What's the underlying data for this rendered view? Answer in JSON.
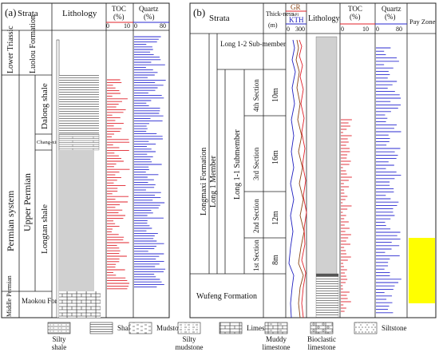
{
  "figure_a": {
    "panel_label": "(a)",
    "headers": {
      "strata": "Strata",
      "lithology": "Lithology",
      "toc": "TOC",
      "toc_unit": "(%)",
      "toc_min": "0",
      "toc_max": "10",
      "quartz": "Quartz",
      "quartz_unit": "(%)",
      "quartz_min": "0",
      "quartz_max": "80"
    },
    "strata": {
      "lower_triassic": "Lower Triassic",
      "luolou_formation": "Luolou Formation",
      "permian_system": "Permian system",
      "upper_permian": "Upper Permian",
      "dalong_shale": "Dalong shale",
      "changxing": "Chang-xing",
      "longtan_shale": "Longtan shale",
      "middle_permian": "Middle Permian",
      "maokou_formation": "Maokou Formation"
    }
  },
  "figure_b": {
    "panel_label": "(b)",
    "headers": {
      "strata": "Strata",
      "thickness": "Thick-ness",
      "thickness_unit": "(m)",
      "gr": "GR",
      "gr_unit": "API",
      "kth": "KTH",
      "gamma_min": "0",
      "gamma_max": "300",
      "lithology": "Lithology",
      "toc": "TOC",
      "toc_unit": "(%)",
      "toc_min": "0",
      "toc_max": "10",
      "quartz": "Quartz",
      "quartz_unit": "(%)",
      "quartz_min": "0",
      "quartz_max": "80",
      "pay_zone": "Pay Zone"
    },
    "strata": {
      "longmaxi_formation": "Longmaxi Formation",
      "long1_member": "Long 1 Member",
      "long1_2_submember": "Long 1-2 Sub-member",
      "long1_1_submember": "Long 1-1 Submember",
      "section_4th": "4th Section",
      "section_3rd": "3rd Section",
      "section_2nd": "2nd Section",
      "section_1st": "1st Section",
      "wufeng_formation": "Wufeng Formation",
      "thickness_10m": "10m",
      "thickness_16m": "16m",
      "thickness_12m": "12m",
      "thickness_8m": "8m"
    },
    "pay_zone_color": "#ffff00"
  },
  "legend": [
    {
      "label": "Silty shale",
      "pattern": "silty-shale"
    },
    {
      "label": "Shale",
      "pattern": "shale"
    },
    {
      "label": "Mudstone",
      "pattern": "mudstone"
    },
    {
      "label": "Silty mudstone",
      "pattern": "silty-mudstone"
    },
    {
      "label": "Limestone",
      "pattern": "limestone"
    },
    {
      "label": "Muddy limestone",
      "pattern": "muddy-limestone"
    },
    {
      "label": "Bioclastic limestone",
      "pattern": "bioclastic-limestone"
    },
    {
      "label": "Siltstone",
      "pattern": "siltstone"
    }
  ],
  "colors": {
    "toc": "#e0202a",
    "quartz": "#2a2ad0",
    "gr": "#8b4513",
    "kth": "#2020c0"
  }
}
